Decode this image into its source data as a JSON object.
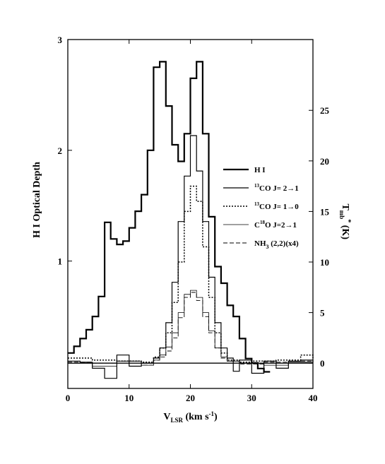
{
  "chart_data": {
    "type": "line",
    "title": "",
    "xlabel_main": "V",
    "xlabel_sub": "LSR",
    "xlabel_rest": " (km s",
    "xlabel_sup": "-1",
    "xlabel_end": ")",
    "ylabel_left": "H I Optical Depth",
    "ylabel_right_main": "T",
    "ylabel_right_sub": "mb",
    "ylabel_right_sup": "*",
    "ylabel_right_unit": " (K)",
    "xlim": [
      0,
      40
    ],
    "ylim_left": [
      -0.15,
      3.0
    ],
    "ylim_right": [
      -2.5,
      32
    ],
    "x_ticks": [
      0,
      10,
      20,
      30,
      40
    ],
    "x_tick_labels": [
      "0",
      "10",
      "20",
      "30",
      "40"
    ],
    "y_left_ticks": [
      1,
      2,
      3
    ],
    "y_left_tick_labels": [
      "1",
      "2",
      "3"
    ],
    "y_right_ticks": [
      0,
      5,
      10,
      15,
      20,
      25
    ],
    "y_right_tick_labels": [
      "0",
      "5",
      "10",
      "15",
      "20",
      "25"
    ],
    "grid": false,
    "legend_placement": "right",
    "series": [
      {
        "name": "H I",
        "axis": "left",
        "style": "thick-solid",
        "x": [
          0,
          1,
          2,
          3,
          4,
          5,
          6,
          7,
          8,
          9,
          10,
          11,
          12,
          13,
          14,
          15,
          16,
          17,
          18,
          19,
          20,
          21,
          22,
          23,
          24,
          25,
          26,
          27,
          28,
          29,
          30,
          31,
          32
        ],
        "values": [
          0.17,
          0.23,
          0.3,
          0.38,
          0.5,
          0.68,
          1.35,
          1.2,
          1.15,
          1.18,
          1.3,
          1.45,
          1.6,
          2.0,
          2.75,
          2.8,
          2.4,
          2.05,
          1.9,
          2.15,
          2.65,
          2.8,
          2.15,
          1.4,
          0.95,
          0.8,
          0.6,
          0.5,
          0.3,
          0.12,
          0.08,
          0.03,
          0.0
        ]
      },
      {
        "name": "13CO J=2→1",
        "axis": "right",
        "style": "solid",
        "x": [
          0,
          2,
          4,
          6,
          8,
          10,
          12,
          14,
          15,
          16,
          17,
          18,
          19,
          20,
          21,
          22,
          23,
          24,
          25,
          26,
          27,
          28,
          30,
          32,
          34,
          36,
          38,
          40
        ],
        "values": [
          0.2,
          0.1,
          -0.5,
          -1.5,
          0.8,
          -0.3,
          0.0,
          0.5,
          1.5,
          4.0,
          8.0,
          14.0,
          18.5,
          22.5,
          19.0,
          14.0,
          8.5,
          4.0,
          1.5,
          0.5,
          -0.8,
          0.3,
          -1.0,
          0.2,
          -0.5,
          0.2,
          0.3,
          0.1
        ]
      },
      {
        "name": "13CO J=1→0",
        "axis": "right",
        "style": "dotted",
        "x": [
          0,
          4,
          8,
          12,
          14,
          15,
          16,
          17,
          18,
          19,
          20,
          21,
          22,
          23,
          24,
          25,
          26,
          28,
          30,
          34,
          38,
          40
        ],
        "values": [
          0.5,
          0.3,
          0.2,
          0.1,
          0.6,
          1.5,
          3.0,
          6.0,
          10.0,
          15.0,
          17.5,
          16.0,
          11.5,
          6.5,
          3.0,
          1.0,
          0.3,
          0.1,
          0.2,
          0.3,
          0.8,
          0.5
        ]
      },
      {
        "name": "C18O J=2→1",
        "axis": "right",
        "style": "thin-solid",
        "x": [
          0,
          4,
          8,
          12,
          14,
          15,
          16,
          17,
          18,
          19,
          20,
          21,
          22,
          23,
          24,
          25,
          26,
          28,
          32,
          36,
          40
        ],
        "values": [
          0.0,
          -0.3,
          0.2,
          -0.2,
          0.3,
          0.8,
          1.6,
          3.0,
          5.0,
          6.8,
          7.2,
          6.5,
          5.0,
          3.2,
          1.5,
          0.6,
          0.2,
          0.0,
          -0.2,
          0.1,
          0.0
        ]
      },
      {
        "name": "NH3 (2,2)(x4)",
        "axis": "right",
        "style": "dashed",
        "x": [
          0,
          4,
          8,
          12,
          14,
          15,
          16,
          17,
          18,
          19,
          20,
          21,
          22,
          23,
          24,
          25,
          26,
          28,
          32,
          36,
          40
        ],
        "values": [
          0.1,
          0.0,
          0.2,
          -0.2,
          0.3,
          0.6,
          1.2,
          2.5,
          4.5,
          6.5,
          7.0,
          6.2,
          4.6,
          3.0,
          1.5,
          0.5,
          0.2,
          -0.1,
          0.1,
          0.2,
          0.0
        ]
      }
    ],
    "legend": [
      {
        "label_main": "H I",
        "style": "thick-solid"
      },
      {
        "label_sup": "13",
        "label_main": "CO J= 2→1",
        "style": "solid"
      },
      {
        "label_sup": "13",
        "label_main": "CO J= 1→0",
        "style": "dotted"
      },
      {
        "label_pre": "C",
        "label_sup": "18",
        "label_main": "O J=2→1",
        "style": "thin-solid"
      },
      {
        "label_pre": "NH",
        "label_sub": "3",
        "label_main": " (2,2)(x4)",
        "style": "dashed"
      }
    ]
  }
}
